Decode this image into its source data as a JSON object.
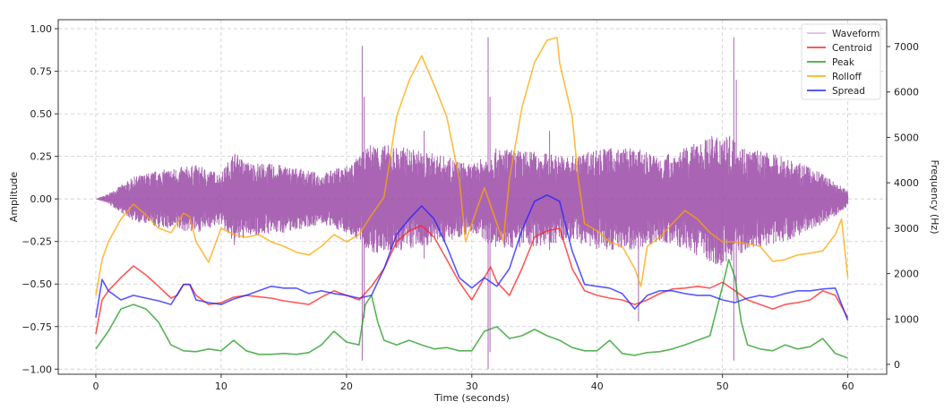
{
  "chart_data": {
    "type": "line",
    "title": "",
    "xlabel": "Time (seconds)",
    "ylabel": "Amplitude",
    "ylabel_right": "Frequency (Hz)",
    "xlim": [
      -3,
      63.1
    ],
    "ylim": [
      -1.03,
      1.053
    ],
    "ylim_right": [
      -217,
      7592
    ],
    "xticks": [
      0,
      10,
      20,
      30,
      40,
      50,
      60
    ],
    "xtick_labels": [
      "0",
      "10",
      "20",
      "30",
      "40",
      "50",
      "60"
    ],
    "yticks": [
      -1.0,
      -0.75,
      -0.5,
      -0.25,
      0.0,
      0.25,
      0.5,
      0.75,
      1.0
    ],
    "ytick_labels": [
      "−1.00",
      "−0.75",
      "−0.50",
      "−0.25",
      "0.00",
      "0.25",
      "0.50",
      "0.75",
      "1.00"
    ],
    "yticks_right": [
      0,
      1000,
      2000,
      3000,
      4000,
      5000,
      6000,
      7000
    ],
    "ytick_labels_right": [
      "0",
      "1000",
      "2000",
      "3000",
      "4000",
      "5000",
      "6000",
      "7000"
    ],
    "grid": true,
    "legend_position": "top-right",
    "waveform": {
      "name": "Waveform",
      "color": "#9a4aa6",
      "envelope": [
        [
          0,
          0
        ],
        [
          1,
          0.03
        ],
        [
          2,
          0.08
        ],
        [
          3,
          0.13
        ],
        [
          5,
          0.17
        ],
        [
          8,
          0.2
        ],
        [
          10,
          0.15
        ],
        [
          11,
          0.28
        ],
        [
          12,
          0.22
        ],
        [
          15,
          0.2
        ],
        [
          18,
          0.15
        ],
        [
          20,
          0.2
        ],
        [
          21,
          0.25
        ],
        [
          22,
          0.33
        ],
        [
          25,
          0.3
        ],
        [
          28,
          0.25
        ],
        [
          30,
          0.2
        ],
        [
          32,
          0.3
        ],
        [
          35,
          0.28
        ],
        [
          38,
          0.25
        ],
        [
          40,
          0.3
        ],
        [
          43,
          0.3
        ],
        [
          45,
          0.25
        ],
        [
          47,
          0.3
        ],
        [
          50,
          0.4
        ],
        [
          52,
          0.3
        ],
        [
          55,
          0.25
        ],
        [
          58,
          0.15
        ],
        [
          60,
          0.05
        ]
      ],
      "spikes": [
        [
          21.25,
          0.9,
          -0.95
        ],
        [
          21.4,
          0.6,
          -0.7
        ],
        [
          26.2,
          0.4,
          -0.35
        ],
        [
          31.3,
          0.95,
          -1.0
        ],
        [
          31.45,
          0.6,
          -0.9
        ],
        [
          36.2,
          0.4,
          -0.3
        ],
        [
          43.3,
          0.25,
          -0.72
        ],
        [
          50.9,
          0.95,
          -0.95
        ],
        [
          51.1,
          0.7,
          -0.6
        ]
      ]
    },
    "series": [
      {
        "name": "Centroid",
        "color": "#ff2020",
        "axis": "right",
        "points": [
          [
            0,
            670
          ],
          [
            0.5,
            1420
          ],
          [
            1,
            1620
          ],
          [
            2,
            1910
          ],
          [
            3,
            2170
          ],
          [
            4,
            1970
          ],
          [
            5,
            1720
          ],
          [
            6,
            1460
          ],
          [
            6.5,
            1520
          ],
          [
            7,
            1760
          ],
          [
            7.5,
            1760
          ],
          [
            8,
            1520
          ],
          [
            9,
            1320
          ],
          [
            10,
            1360
          ],
          [
            11,
            1480
          ],
          [
            12,
            1520
          ],
          [
            14,
            1460
          ],
          [
            15,
            1400
          ],
          [
            16,
            1360
          ],
          [
            17,
            1320
          ],
          [
            18,
            1480
          ],
          [
            19,
            1620
          ],
          [
            20,
            1520
          ],
          [
            21,
            1420
          ],
          [
            22,
            1720
          ],
          [
            23,
            2110
          ],
          [
            24,
            2700
          ],
          [
            25,
            2940
          ],
          [
            26,
            3060
          ],
          [
            27,
            2800
          ],
          [
            28,
            2310
          ],
          [
            29,
            1810
          ],
          [
            30,
            1420
          ],
          [
            31,
            1910
          ],
          [
            31.5,
            2150
          ],
          [
            32,
            1810
          ],
          [
            33,
            1520
          ],
          [
            34,
            2110
          ],
          [
            35,
            2800
          ],
          [
            36,
            2940
          ],
          [
            37,
            3000
          ],
          [
            38,
            2110
          ],
          [
            39,
            1620
          ],
          [
            40,
            1520
          ],
          [
            41,
            1460
          ],
          [
            42,
            1420
          ],
          [
            43,
            1320
          ],
          [
            44,
            1420
          ],
          [
            45,
            1560
          ],
          [
            46,
            1660
          ],
          [
            47,
            1680
          ],
          [
            48,
            1720
          ],
          [
            49,
            1680
          ],
          [
            50,
            1810
          ],
          [
            51,
            1620
          ],
          [
            52,
            1420
          ],
          [
            53,
            1320
          ],
          [
            54,
            1220
          ],
          [
            55,
            1320
          ],
          [
            56,
            1360
          ],
          [
            57,
            1420
          ],
          [
            58,
            1620
          ],
          [
            59,
            1520
          ],
          [
            60,
            1030
          ]
        ]
      },
      {
        "name": "Peak",
        "color": "#1f9a1f",
        "axis": "right",
        "points": [
          [
            0,
            340
          ],
          [
            1,
            730
          ],
          [
            2,
            1220
          ],
          [
            3,
            1320
          ],
          [
            4,
            1220
          ],
          [
            5,
            930
          ],
          [
            6,
            430
          ],
          [
            7,
            300
          ],
          [
            8,
            280
          ],
          [
            9,
            340
          ],
          [
            10,
            300
          ],
          [
            11,
            530
          ],
          [
            12,
            300
          ],
          [
            13,
            220
          ],
          [
            14,
            220
          ],
          [
            15,
            240
          ],
          [
            16,
            220
          ],
          [
            17,
            260
          ],
          [
            18,
            430
          ],
          [
            19,
            730
          ],
          [
            20,
            490
          ],
          [
            21,
            430
          ],
          [
            21.5,
            1320
          ],
          [
            22,
            1520
          ],
          [
            22.5,
            930
          ],
          [
            23,
            530
          ],
          [
            24,
            430
          ],
          [
            25,
            530
          ],
          [
            26,
            430
          ],
          [
            27,
            340
          ],
          [
            28,
            370
          ],
          [
            29,
            300
          ],
          [
            30,
            300
          ],
          [
            31,
            730
          ],
          [
            32,
            830
          ],
          [
            33,
            570
          ],
          [
            34,
            630
          ],
          [
            35,
            770
          ],
          [
            36,
            630
          ],
          [
            37,
            530
          ],
          [
            38,
            370
          ],
          [
            39,
            300
          ],
          [
            40,
            300
          ],
          [
            41,
            530
          ],
          [
            42,
            240
          ],
          [
            43,
            200
          ],
          [
            44,
            260
          ],
          [
            45,
            280
          ],
          [
            46,
            340
          ],
          [
            47,
            430
          ],
          [
            48,
            530
          ],
          [
            49,
            630
          ],
          [
            50,
            1720
          ],
          [
            50.5,
            2310
          ],
          [
            51,
            1910
          ],
          [
            51.5,
            930
          ],
          [
            52,
            430
          ],
          [
            53,
            340
          ],
          [
            54,
            300
          ],
          [
            55,
            430
          ],
          [
            56,
            340
          ],
          [
            57,
            390
          ],
          [
            58,
            570
          ],
          [
            59,
            240
          ],
          [
            60,
            140
          ]
        ]
      },
      {
        "name": "Rolloff",
        "color": "#ffa500",
        "axis": "right",
        "points": [
          [
            0,
            1520
          ],
          [
            0.5,
            2310
          ],
          [
            1,
            2700
          ],
          [
            2,
            3200
          ],
          [
            3,
            3530
          ],
          [
            4,
            3290
          ],
          [
            5,
            3000
          ],
          [
            6,
            2900
          ],
          [
            7,
            3330
          ],
          [
            7.5,
            3250
          ],
          [
            8,
            2700
          ],
          [
            9,
            2250
          ],
          [
            10,
            3000
          ],
          [
            11,
            2860
          ],
          [
            12,
            2800
          ],
          [
            13,
            2860
          ],
          [
            14,
            2700
          ],
          [
            15,
            2600
          ],
          [
            16,
            2470
          ],
          [
            17,
            2410
          ],
          [
            18,
            2600
          ],
          [
            19,
            2860
          ],
          [
            20,
            2700
          ],
          [
            21,
            2860
          ],
          [
            22,
            3290
          ],
          [
            23,
            3690
          ],
          [
            24,
            5460
          ],
          [
            25,
            6250
          ],
          [
            26,
            6800
          ],
          [
            27,
            6150
          ],
          [
            28,
            5460
          ],
          [
            29,
            4080
          ],
          [
            29.5,
            2700
          ],
          [
            30,
            3100
          ],
          [
            31,
            3890
          ],
          [
            32,
            3100
          ],
          [
            32.5,
            2700
          ],
          [
            33,
            4080
          ],
          [
            34,
            5660
          ],
          [
            35,
            6650
          ],
          [
            36,
            7140
          ],
          [
            36.8,
            7200
          ],
          [
            37,
            6650
          ],
          [
            38,
            5460
          ],
          [
            38.5,
            4080
          ],
          [
            39,
            3100
          ],
          [
            40,
            2940
          ],
          [
            41,
            2700
          ],
          [
            42,
            2600
          ],
          [
            43,
            2110
          ],
          [
            43.5,
            1720
          ],
          [
            44,
            2600
          ],
          [
            45,
            2800
          ],
          [
            46,
            3100
          ],
          [
            47,
            3390
          ],
          [
            48,
            3200
          ],
          [
            49,
            2900
          ],
          [
            50,
            2700
          ],
          [
            51,
            2700
          ],
          [
            52,
            2660
          ],
          [
            53,
            2600
          ],
          [
            54,
            2270
          ],
          [
            55,
            2310
          ],
          [
            56,
            2410
          ],
          [
            57,
            2450
          ],
          [
            58,
            2500
          ],
          [
            59,
            2860
          ],
          [
            59.5,
            3200
          ],
          [
            60,
            1910
          ]
        ]
      },
      {
        "name": "Spread",
        "color": "#2020ff",
        "axis": "right",
        "points": [
          [
            0,
            1030
          ],
          [
            0.5,
            1870
          ],
          [
            1,
            1620
          ],
          [
            2,
            1420
          ],
          [
            3,
            1520
          ],
          [
            4,
            1460
          ],
          [
            5,
            1400
          ],
          [
            6,
            1320
          ],
          [
            7,
            1760
          ],
          [
            7.5,
            1760
          ],
          [
            8,
            1420
          ],
          [
            9,
            1360
          ],
          [
            10,
            1320
          ],
          [
            11,
            1440
          ],
          [
            12,
            1520
          ],
          [
            13,
            1620
          ],
          [
            14,
            1720
          ],
          [
            15,
            1680
          ],
          [
            16,
            1680
          ],
          [
            17,
            1560
          ],
          [
            18,
            1620
          ],
          [
            19,
            1560
          ],
          [
            20,
            1520
          ],
          [
            21,
            1460
          ],
          [
            22,
            1520
          ],
          [
            23,
            2110
          ],
          [
            24,
            2860
          ],
          [
            25,
            3200
          ],
          [
            26,
            3490
          ],
          [
            27,
            3200
          ],
          [
            28,
            2600
          ],
          [
            29,
            1910
          ],
          [
            30,
            1680
          ],
          [
            31,
            1910
          ],
          [
            32,
            1720
          ],
          [
            33,
            2110
          ],
          [
            34,
            2960
          ],
          [
            35,
            3590
          ],
          [
            36,
            3730
          ],
          [
            37,
            3590
          ],
          [
            38,
            2500
          ],
          [
            39,
            1760
          ],
          [
            40,
            1720
          ],
          [
            41,
            1680
          ],
          [
            42,
            1560
          ],
          [
            43,
            1220
          ],
          [
            44,
            1520
          ],
          [
            45,
            1620
          ],
          [
            46,
            1620
          ],
          [
            47,
            1560
          ],
          [
            48,
            1520
          ],
          [
            49,
            1520
          ],
          [
            50,
            1420
          ],
          [
            51,
            1360
          ],
          [
            52,
            1460
          ],
          [
            53,
            1520
          ],
          [
            54,
            1480
          ],
          [
            55,
            1560
          ],
          [
            56,
            1620
          ],
          [
            57,
            1620
          ],
          [
            58,
            1660
          ],
          [
            59,
            1680
          ],
          [
            60,
            970
          ]
        ]
      }
    ],
    "legend": [
      "Waveform",
      "Centroid",
      "Peak",
      "Rolloff",
      "Spread"
    ]
  }
}
